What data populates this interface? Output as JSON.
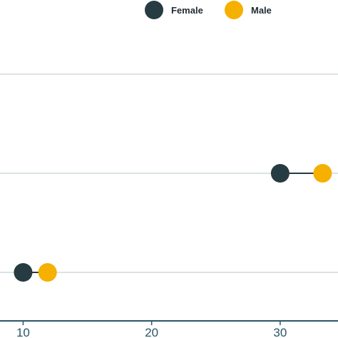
{
  "chart_data": {
    "type": "dumbbell",
    "x_ticks": [
      10,
      20,
      30
    ],
    "xlim": [
      8.2,
      34.5
    ],
    "grid": "horizontal",
    "legend_position": "top-right",
    "rows": 3,
    "series": [
      {
        "name": "Female",
        "color": "#263b42",
        "values": [
          null,
          30,
          10
        ]
      },
      {
        "name": "Male",
        "color": "#f5b000",
        "values": [
          null,
          33.3,
          11.9
        ]
      }
    ],
    "connector_color": "#263b42",
    "grid_color": "#dde3e3",
    "axis_color": "#2b5566"
  }
}
